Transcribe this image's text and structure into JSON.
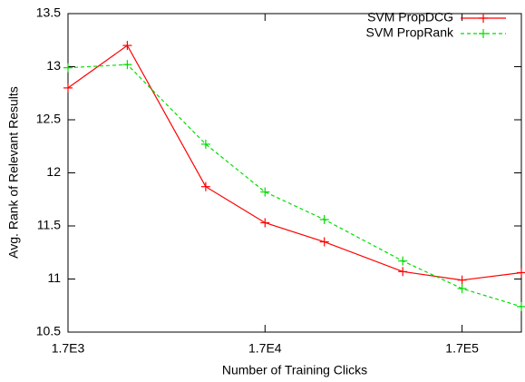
{
  "chart_data": {
    "type": "line",
    "x_label": "Number of Training Clicks",
    "y_label": "Avg. Rank of Relevant Results",
    "x": [
      1700,
      3400,
      8500,
      17000,
      34000,
      85000,
      170000,
      340000
    ],
    "xscale": "log",
    "xlim": [
      1700,
      340000
    ],
    "xticks": [
      {
        "value": 1700,
        "label": "1.7E3"
      },
      {
        "value": 17000,
        "label": "1.7E4"
      },
      {
        "value": 170000,
        "label": "1.7E5"
      }
    ],
    "ylim": [
      10.5,
      13.5
    ],
    "yticks": [
      10.5,
      11,
      11.5,
      12,
      12.5,
      13,
      13.5
    ],
    "legend": "top-right",
    "series": [
      {
        "name": "SVM PropDCG",
        "color": "#ff0000",
        "dash": false,
        "values": [
          12.8,
          13.2,
          11.87,
          11.53,
          11.35,
          11.07,
          10.99,
          11.06
        ]
      },
      {
        "name": "SVM PropRank",
        "color": "#00dd00",
        "dash": true,
        "values": [
          12.99,
          13.02,
          12.27,
          11.82,
          11.56,
          11.17,
          10.91,
          10.74
        ]
      }
    ]
  }
}
